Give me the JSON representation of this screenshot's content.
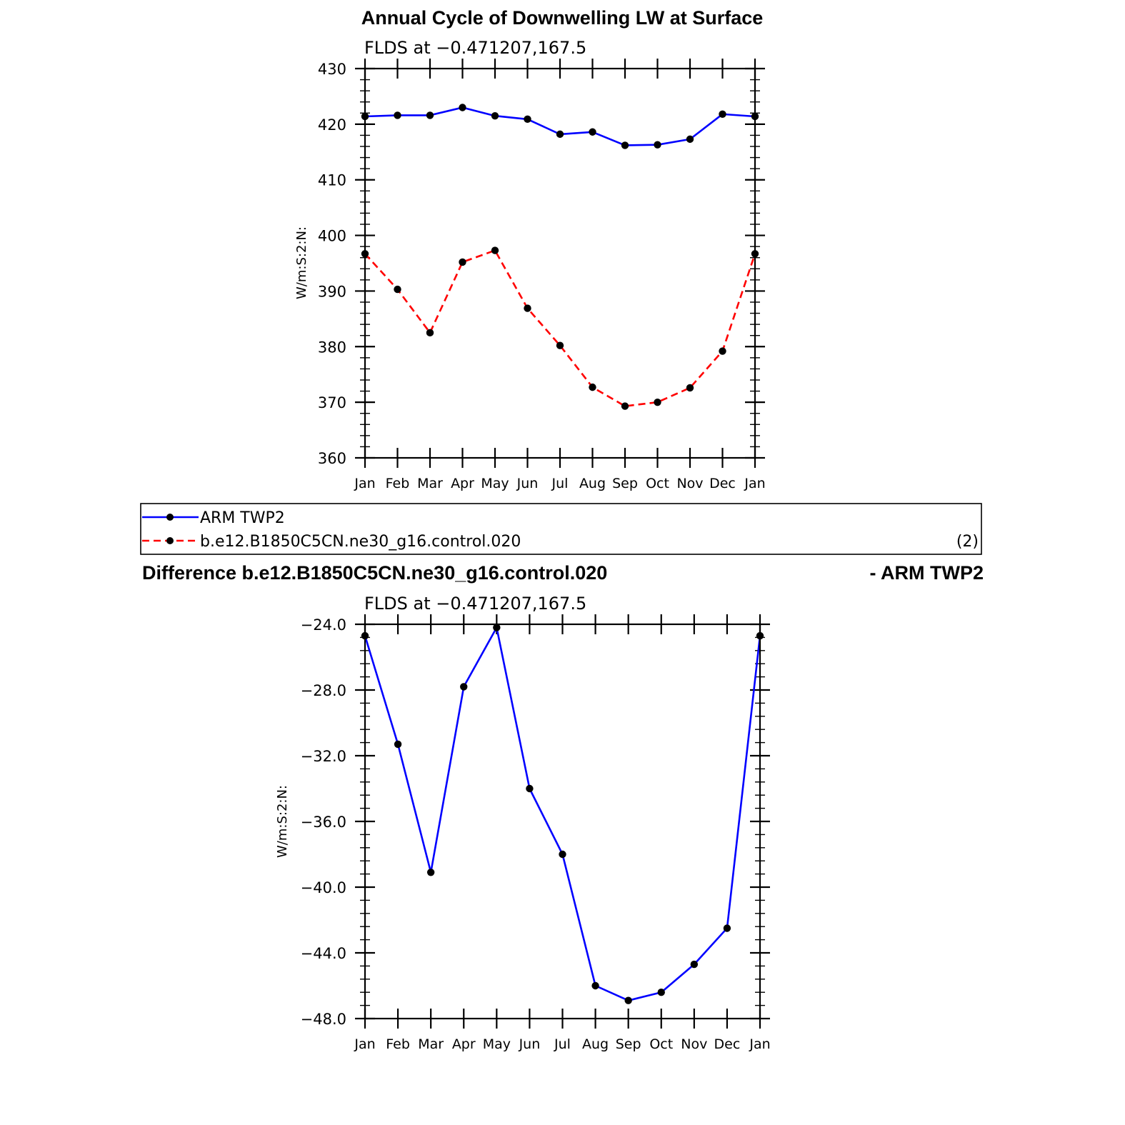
{
  "top_title": "Annual Cycle of Downwelling LW at Surface",
  "bottom_title_left": "Difference b.e12.B1850C5CN.ne30_g16.control.020",
  "bottom_title_right": "- ARM TWP2",
  "legend": {
    "entries": [
      "ARM TWP2",
      "b.e12.B1850C5CN.ne30_g16.control.020"
    ],
    "count_label": "(2)"
  },
  "colors": {
    "obs": "#0000ff",
    "model": "#ff0000",
    "diff": "#0000ff",
    "marker": "#000000"
  },
  "chart_data": [
    {
      "type": "line",
      "subtitle": "FLDS at −0.471207,167.5",
      "ylabel": "W/m:S:2:N:",
      "xlabel": "",
      "categories": [
        "Jan",
        "Feb",
        "Mar",
        "Apr",
        "May",
        "Jun",
        "Jul",
        "Aug",
        "Sep",
        "Oct",
        "Nov",
        "Dec",
        "Jan"
      ],
      "ylim": [
        360,
        430
      ],
      "yticks": [
        360,
        370,
        380,
        390,
        400,
        410,
        420,
        430
      ],
      "ytick_labels": [
        "360",
        "370",
        "380",
        "390",
        "400",
        "410",
        "420",
        "430"
      ],
      "series": [
        {
          "name": "ARM TWP2",
          "style": "solid",
          "color": "#0000ff",
          "values": [
            421.4,
            421.6,
            421.6,
            423.0,
            421.5,
            420.9,
            418.2,
            418.6,
            416.2,
            416.3,
            417.3,
            421.8,
            421.4
          ]
        },
        {
          "name": "b.e12.B1850C5CN.ne30_g16.control.020",
          "style": "dashed",
          "color": "#ff0000",
          "values": [
            396.7,
            390.3,
            382.5,
            395.2,
            397.3,
            386.9,
            380.2,
            372.7,
            369.3,
            370.0,
            372.6,
            379.2,
            396.7
          ]
        }
      ]
    },
    {
      "type": "line",
      "subtitle": "FLDS at −0.471207,167.5",
      "ylabel": "W/m:S:2:N:",
      "xlabel": "",
      "categories": [
        "Jan",
        "Feb",
        "Mar",
        "Apr",
        "May",
        "Jun",
        "Jul",
        "Aug",
        "Sep",
        "Oct",
        "Nov",
        "Dec",
        "Jan"
      ],
      "ylim": [
        -48.0,
        -24.0
      ],
      "yticks": [
        -48,
        -44,
        -40,
        -36,
        -32,
        -28,
        -24
      ],
      "ytick_labels": [
        "−48.0",
        "−44.0",
        "−40.0",
        "−36.0",
        "−32.0",
        "−28.0",
        "−24.0"
      ],
      "series": [
        {
          "name": "",
          "style": "solid",
          "color": "#0000ff",
          "values": [
            -24.7,
            -31.3,
            -39.1,
            -27.8,
            -24.2,
            -34.0,
            -38.0,
            -46.0,
            -46.9,
            -46.4,
            -44.7,
            -42.5,
            -24.7
          ]
        }
      ]
    }
  ]
}
